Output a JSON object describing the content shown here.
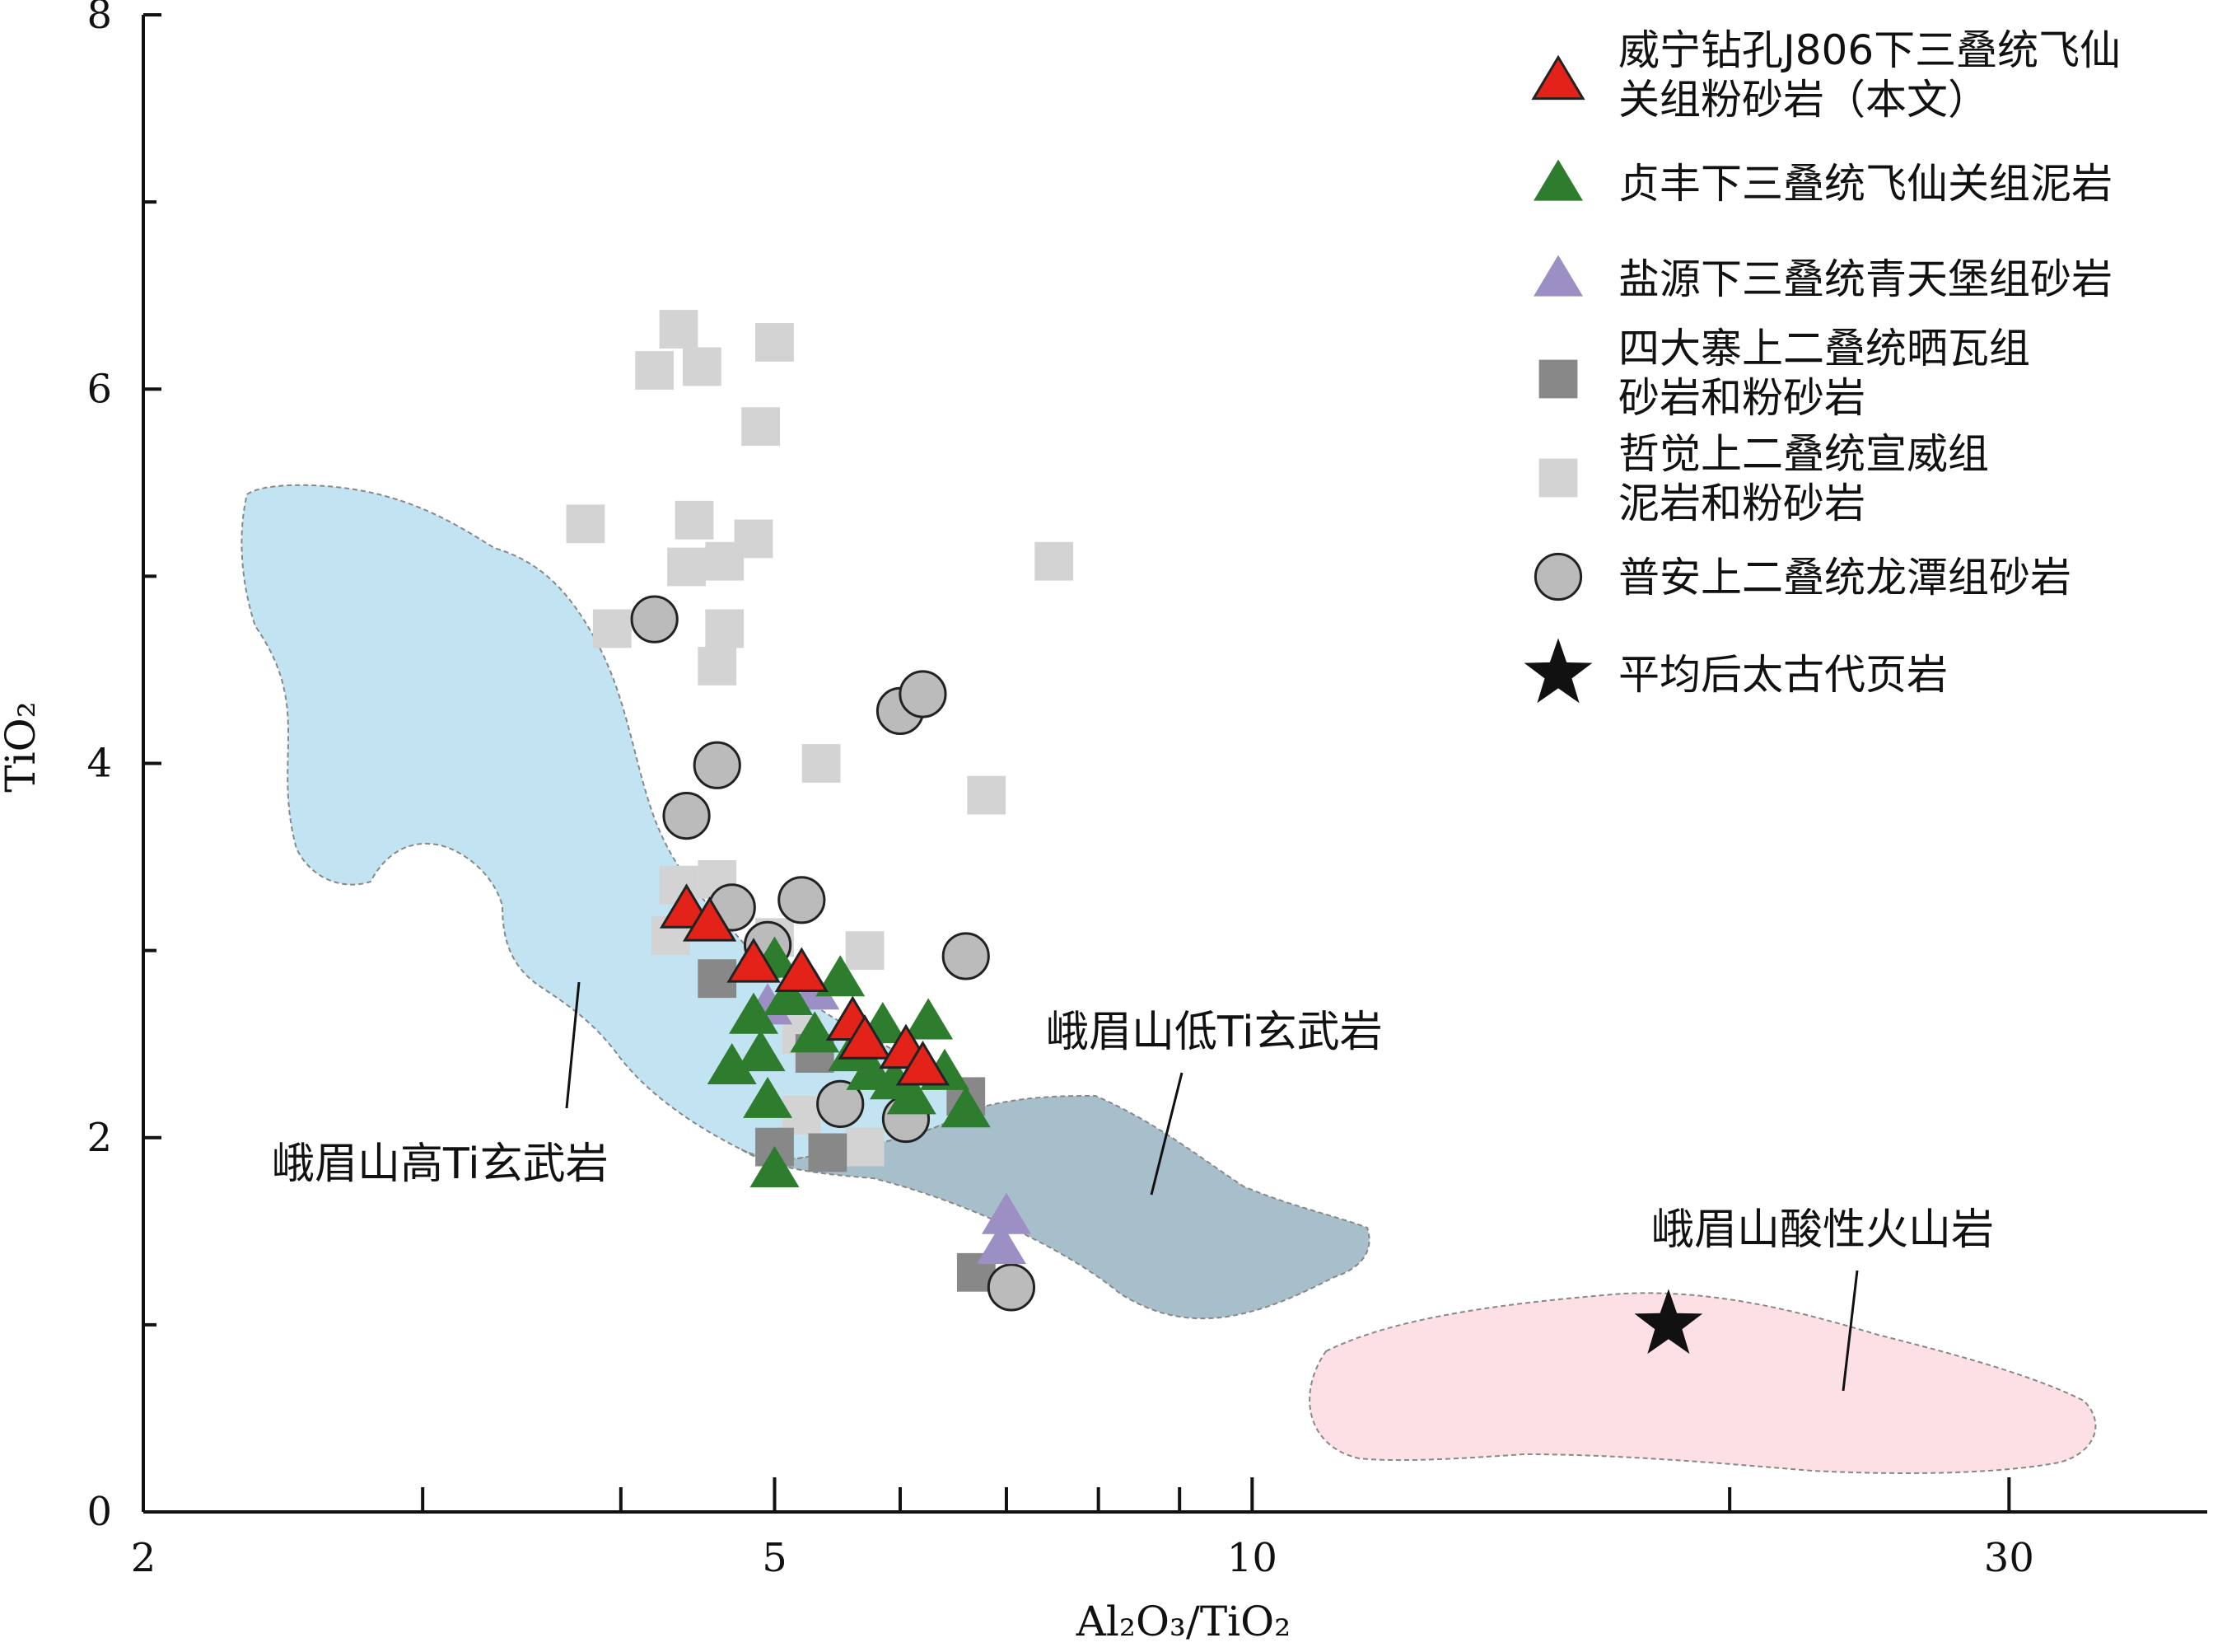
{
  "chart_data": {
    "type": "scatter",
    "xlabel": "Al₂O₃/TiO₂",
    "ylabel": "TiO₂",
    "x_scale": "log",
    "xlim": [
      2,
      40
    ],
    "ylim": [
      0,
      8
    ],
    "x_ticks": [
      2,
      5,
      10,
      30
    ],
    "x_minor_ticks": [
      3,
      4,
      6,
      7,
      8,
      9,
      20
    ],
    "y_ticks": [
      0,
      2,
      4,
      6,
      8
    ],
    "y_minor_ticks": [
      1,
      3,
      5,
      7
    ],
    "grid": false,
    "legend_position": "top-right",
    "series": [
      {
        "name": "威宁钻孔J806下三叠统飞仙关组粉砂岩（本文）",
        "marker": "triangle",
        "color": "#e32219",
        "values": [
          [
            4.4,
            3.22
          ],
          [
            4.55,
            3.15
          ],
          [
            4.85,
            2.93
          ],
          [
            5.2,
            2.88
          ],
          [
            5.6,
            2.62
          ],
          [
            5.7,
            2.52
          ],
          [
            6.05,
            2.47
          ],
          [
            6.2,
            2.38
          ]
        ]
      },
      {
        "name": "贞丰下三叠统飞仙关组泥岩",
        "marker": "triangle",
        "color": "#2e7d2e",
        "values": [
          [
            4.85,
            2.65
          ],
          [
            4.9,
            2.45
          ],
          [
            4.7,
            2.38
          ],
          [
            5.0,
            2.95
          ],
          [
            5.1,
            2.75
          ],
          [
            5.3,
            2.55
          ],
          [
            5.5,
            2.85
          ],
          [
            5.6,
            2.45
          ],
          [
            5.75,
            2.35
          ],
          [
            5.85,
            2.6
          ],
          [
            5.95,
            2.3
          ],
          [
            6.1,
            2.22
          ],
          [
            6.25,
            2.62
          ],
          [
            6.4,
            2.35
          ],
          [
            6.6,
            2.15
          ],
          [
            4.95,
            2.2
          ],
          [
            5.0,
            1.83
          ]
        ]
      },
      {
        "name": "盐源下三叠统青天堡组砂岩",
        "marker": "triangle",
        "color": "#9b8fc4",
        "values": [
          [
            4.95,
            2.7
          ],
          [
            5.3,
            2.78
          ],
          [
            7.0,
            1.58
          ],
          [
            6.95,
            1.42
          ]
        ]
      },
      {
        "name": "四大寨上二叠统晒瓦组砂岩和粉砂岩",
        "marker": "square",
        "color": "#888888",
        "values": [
          [
            4.6,
            2.85
          ],
          [
            5.0,
            1.95
          ],
          [
            5.4,
            1.92
          ],
          [
            5.3,
            2.45
          ],
          [
            6.6,
            2.22
          ],
          [
            6.7,
            1.28
          ]
        ]
      },
      {
        "name": "哲觉上二叠统宣威组泥岩和粉砂岩",
        "marker": "square",
        "color": "#d3d3d3",
        "values": [
          [
            4.35,
            6.32
          ],
          [
            4.2,
            6.1
          ],
          [
            4.5,
            6.12
          ],
          [
            5.0,
            6.25
          ],
          [
            4.9,
            5.8
          ],
          [
            3.8,
            5.28
          ],
          [
            4.45,
            5.3
          ],
          [
            4.4,
            5.05
          ],
          [
            4.65,
            5.08
          ],
          [
            4.85,
            5.2
          ],
          [
            3.95,
            4.72
          ],
          [
            4.65,
            4.72
          ],
          [
            4.6,
            4.52
          ],
          [
            5.35,
            4.0
          ],
          [
            6.8,
            3.83
          ],
          [
            7.5,
            5.08
          ],
          [
            4.35,
            3.35
          ],
          [
            4.6,
            3.38
          ],
          [
            4.3,
            3.08
          ],
          [
            5.0,
            3.07
          ],
          [
            5.7,
            3.0
          ],
          [
            5.2,
            2.55
          ],
          [
            5.7,
            1.95
          ],
          [
            5.2,
            2.12
          ]
        ]
      },
      {
        "name": "普安上二叠统龙潭组砂岩",
        "marker": "circle",
        "color": "#bbbbbb",
        "values": [
          [
            4.2,
            4.77
          ],
          [
            4.6,
            3.99
          ],
          [
            4.4,
            3.72
          ],
          [
            4.7,
            3.23
          ],
          [
            5.2,
            3.27
          ],
          [
            4.95,
            3.03
          ],
          [
            6.0,
            4.28
          ],
          [
            6.2,
            4.37
          ],
          [
            6.6,
            2.97
          ],
          [
            5.5,
            2.18
          ],
          [
            6.05,
            2.1
          ],
          [
            7.05,
            1.2
          ]
        ]
      },
      {
        "name": "平均后太古代页岩",
        "marker": "star",
        "color": "#111111",
        "values": [
          [
            18.3,
            1.0
          ]
        ]
      }
    ],
    "regions": [
      {
        "name": "峨眉山高Ti玄武岩",
        "color": "#c2e4f2"
      },
      {
        "name": "峨眉山低Ti玄武岩",
        "color": "#a7bfcb"
      },
      {
        "name": "峨眉山酸性火山岩",
        "color": "#fde0e5"
      }
    ]
  }
}
